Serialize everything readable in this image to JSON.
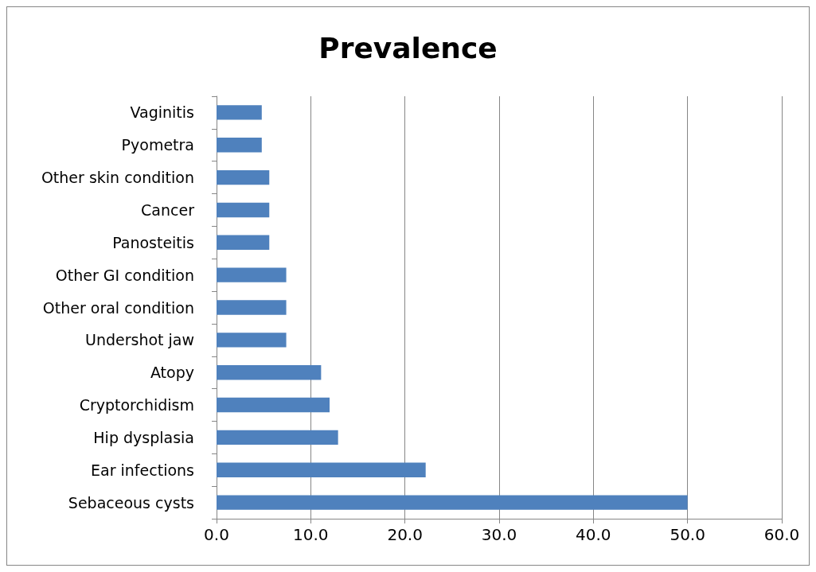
{
  "chart_data": {
    "type": "bar",
    "orientation": "horizontal",
    "title": "Prevalence",
    "categories": [
      "Vaginitis",
      "Pyometra",
      "Other skin condition",
      "Cancer",
      "Panosteitis",
      "Other GI condition",
      "Other oral condition",
      "Undershot jaw",
      "Atopy",
      "Cryptorchidism",
      "Hip dysplasia",
      "Ear infections",
      "Sebaceous cysts"
    ],
    "values": [
      4.8,
      4.8,
      5.6,
      5.6,
      5.6,
      7.4,
      7.4,
      7.4,
      11.1,
      12.0,
      12.9,
      22.2,
      50.0
    ],
    "color": "#4f81bd",
    "xlim": [
      0,
      60
    ],
    "xticks": [
      {
        "value": 0,
        "label": "0.0"
      },
      {
        "value": 10,
        "label": "10.0"
      },
      {
        "value": 20,
        "label": "20.0"
      },
      {
        "value": 30,
        "label": "30.0"
      },
      {
        "value": 40,
        "label": "40.0"
      },
      {
        "value": 50,
        "label": "50.0"
      },
      {
        "value": 60,
        "label": "60.0"
      }
    ],
    "grid": "x"
  }
}
